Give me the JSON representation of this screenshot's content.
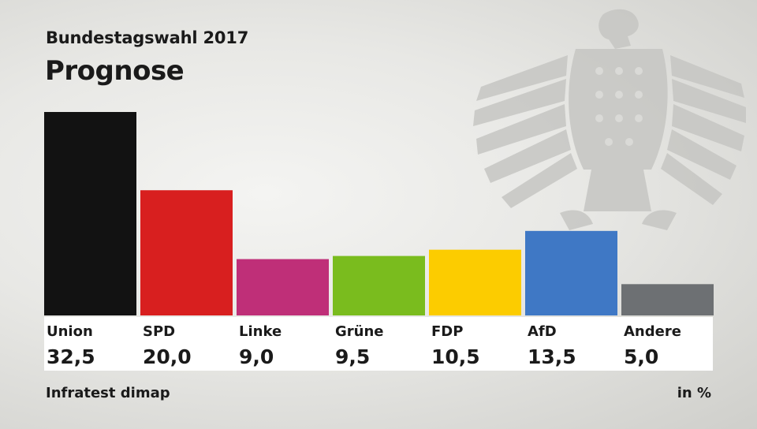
{
  "supertitle": "Bundestagswahl 2017",
  "title": "Prognose",
  "source": "Infratest dimap",
  "unit": "in %",
  "chart_data": {
    "type": "bar",
    "categories": [
      "Union",
      "SPD",
      "Linke",
      "Grüne",
      "FDP",
      "AfD",
      "Andere"
    ],
    "values": [
      32.5,
      20.0,
      9.0,
      9.5,
      10.5,
      13.5,
      5.0
    ],
    "value_labels": [
      "32,5",
      "20,0",
      "9,0",
      "9,5",
      "10,5",
      "13,5",
      "5,0"
    ],
    "colors": [
      "#121212",
      "#d81f1f",
      "#bf2f78",
      "#7abc1e",
      "#fccc00",
      "#3f78c5",
      "#6d7073"
    ],
    "ylim": [
      0,
      32.5
    ],
    "grid": false,
    "legend": "none"
  }
}
